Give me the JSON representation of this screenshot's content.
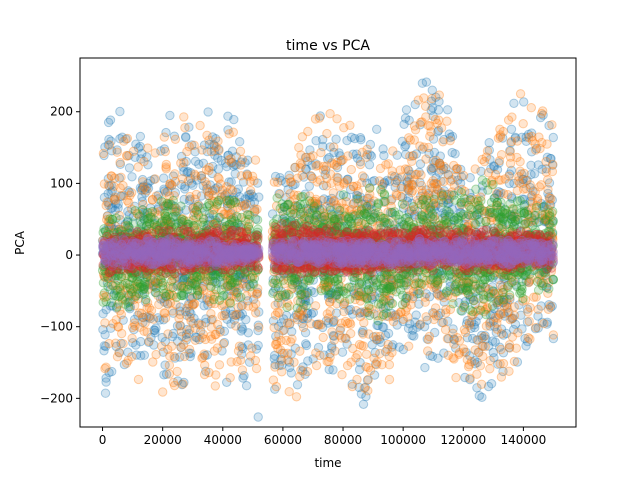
{
  "chart_data": {
    "type": "scatter",
    "title": "time vs PCA",
    "xlabel": "time",
    "ylabel": "PCA",
    "xlim": [
      -7500,
      157500
    ],
    "ylim": [
      -240,
      275
    ],
    "xticks": [
      0,
      20000,
      40000,
      60000,
      80000,
      100000,
      120000,
      140000
    ],
    "xtick_labels": [
      "0",
      "20000",
      "40000",
      "60000",
      "80000",
      "100000",
      "120000",
      "140000"
    ],
    "yticks": [
      -200,
      -100,
      0,
      100,
      200
    ],
    "ytick_labels": [
      "−200",
      "−100",
      "0",
      "100",
      "200"
    ],
    "grid": false,
    "legend": "none",
    "marker": "circle",
    "alpha": 0.2,
    "x_range": [
      0,
      150000
    ],
    "gap": [
      52000,
      56500
    ],
    "series": [
      {
        "color": "#1f77b4",
        "envelope": [
          [
            0,
            -200,
            200
          ],
          [
            3000,
            -190,
            230
          ],
          [
            10000,
            -170,
            195
          ],
          [
            18000,
            -160,
            150
          ],
          [
            22000,
            -215,
            215
          ],
          [
            30000,
            -185,
            195
          ],
          [
            38000,
            -195,
            210
          ],
          [
            45000,
            -170,
            200
          ],
          [
            51000,
            -225,
            140
          ],
          [
            52000,
            -230,
            120
          ],
          [
            56500,
            -215,
            140
          ],
          [
            62000,
            -205,
            145
          ],
          [
            70000,
            -200,
            220
          ],
          [
            78000,
            -170,
            205
          ],
          [
            88000,
            -220,
            205
          ],
          [
            95000,
            -185,
            160
          ],
          [
            100000,
            -145,
            205
          ],
          [
            108000,
            -160,
            255
          ],
          [
            112000,
            -150,
            265
          ],
          [
            118000,
            -170,
            160
          ],
          [
            124000,
            -215,
            140
          ],
          [
            130000,
            -195,
            180
          ],
          [
            138000,
            -165,
            245
          ],
          [
            150000,
            -125,
            195
          ]
        ]
      },
      {
        "color": "#ff7f0e",
        "envelope": [
          [
            0,
            -185,
            180
          ],
          [
            3000,
            -180,
            215
          ],
          [
            10000,
            -175,
            190
          ],
          [
            18000,
            -180,
            145
          ],
          [
            22000,
            -230,
            210
          ],
          [
            30000,
            -185,
            200
          ],
          [
            38000,
            -200,
            200
          ],
          [
            45000,
            -175,
            195
          ],
          [
            51000,
            -205,
            145
          ],
          [
            52000,
            -200,
            130
          ],
          [
            56500,
            -210,
            135
          ],
          [
            62000,
            -205,
            145
          ],
          [
            70000,
            -195,
            215
          ],
          [
            78000,
            -175,
            200
          ],
          [
            88000,
            -215,
            195
          ],
          [
            95000,
            -185,
            155
          ],
          [
            100000,
            -150,
            200
          ],
          [
            108000,
            -155,
            250
          ],
          [
            112000,
            -150,
            260
          ],
          [
            118000,
            -175,
            155
          ],
          [
            124000,
            -210,
            135
          ],
          [
            130000,
            -200,
            180
          ],
          [
            138000,
            -170,
            235
          ],
          [
            150000,
            -130,
            190
          ]
        ]
      },
      {
        "color": "#2ca02c",
        "envelope": [
          [
            0,
            -70,
            50
          ],
          [
            10000,
            -85,
            70
          ],
          [
            20000,
            -65,
            85
          ],
          [
            30000,
            -60,
            70
          ],
          [
            40000,
            -75,
            85
          ],
          [
            52000,
            -55,
            60
          ],
          [
            56500,
            -60,
            90
          ],
          [
            65000,
            -85,
            95
          ],
          [
            72000,
            -65,
            75
          ],
          [
            80000,
            -65,
            85
          ],
          [
            90000,
            -100,
            110
          ],
          [
            98000,
            -80,
            80
          ],
          [
            110000,
            -55,
            80
          ],
          [
            118000,
            -80,
            95
          ],
          [
            126000,
            -95,
            115
          ],
          [
            134000,
            -70,
            95
          ],
          [
            150000,
            -60,
            70
          ]
        ]
      },
      {
        "color": "#d62728",
        "envelope": [
          [
            0,
            -25,
            30
          ],
          [
            20000,
            -28,
            35
          ],
          [
            40000,
            -25,
            40
          ],
          [
            52000,
            -20,
            30
          ],
          [
            56500,
            -25,
            45
          ],
          [
            70000,
            -30,
            45
          ],
          [
            90000,
            -25,
            35
          ],
          [
            110000,
            -22,
            40
          ],
          [
            130000,
            -25,
            35
          ],
          [
            150000,
            -25,
            35
          ]
        ]
      },
      {
        "color": "#9467bd",
        "envelope": [
          [
            0,
            -18,
            22
          ],
          [
            20000,
            -16,
            24
          ],
          [
            40000,
            -15,
            22
          ],
          [
            52000,
            -8,
            10
          ],
          [
            56500,
            -12,
            22
          ],
          [
            70000,
            -15,
            25
          ],
          [
            90000,
            -14,
            20
          ],
          [
            110000,
            -15,
            24
          ],
          [
            130000,
            -14,
            22
          ],
          [
            150000,
            -15,
            22
          ]
        ]
      }
    ]
  }
}
